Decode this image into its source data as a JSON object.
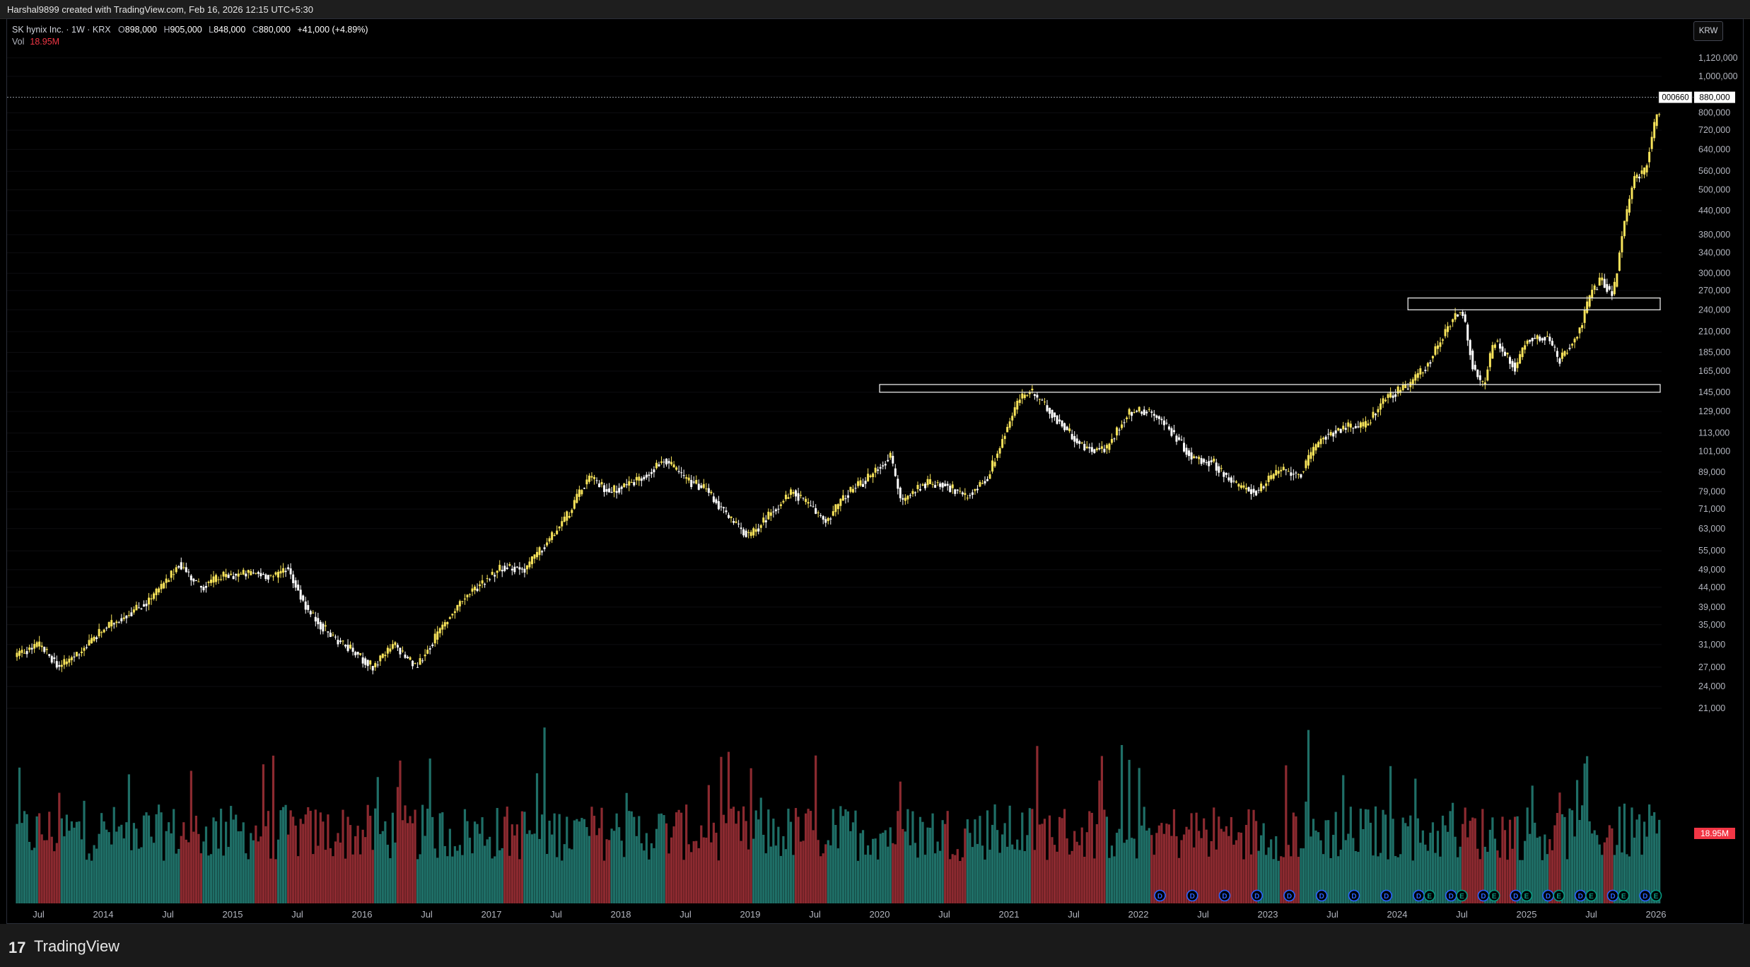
{
  "header": {
    "credit": "Harshal9899 created with TradingView.com, Feb 16, 2026 12:15 UTC+5:30"
  },
  "legend": {
    "symbol": "SK hynix Inc. · 1W · KRX",
    "open_label": "O",
    "open": "898,000",
    "high_label": "H",
    "high": "905,000",
    "low_label": "L",
    "low": "848,000",
    "close_label": "C",
    "close": "880,000",
    "change": "+41,000 (+4.89%)",
    "vol_label": "Vol",
    "vol_value": "18.95M"
  },
  "currency": "KRW",
  "price_tag": {
    "ticker": "000660",
    "price": "880,000"
  },
  "vol_tag": "18.95M",
  "footer": {
    "brand": "TradingView",
    "logo_glyph": "17"
  },
  "colors": {
    "background": "#000000",
    "candle_up": "#f7e35a",
    "candle_down": "#ffffff",
    "volume_up": "#1f6f67",
    "volume_down": "#8c2a30",
    "volume_tag": "#f23645",
    "event_dividend": "#2962ff",
    "event_earnings": "#089981"
  },
  "chart_data": {
    "type": "candlestick",
    "interval": "1W",
    "currency": "KRW",
    "y_scale": "log",
    "y_ticks": [
      21000,
      24000,
      27000,
      31000,
      35000,
      39000,
      44000,
      49000,
      55000,
      63000,
      71000,
      79000,
      89000,
      101000,
      113000,
      129000,
      145000,
      165000,
      185000,
      210000,
      240000,
      270000,
      300000,
      340000,
      380000,
      440000,
      500000,
      560000,
      640000,
      720000,
      800000,
      1000000,
      1120000
    ],
    "y_tick_labels": [
      "21,000",
      "24,000",
      "27,000",
      "31,000",
      "35,000",
      "39,000",
      "44,000",
      "49,000",
      "55,000",
      "63,000",
      "71,000",
      "79,000",
      "89,000",
      "101,000",
      "113,000",
      "129,000",
      "145,000",
      "165,000",
      "185,000",
      "210,000",
      "240,000",
      "270,000",
      "300,000",
      "340,000",
      "380,000",
      "440,000",
      "500,000",
      "560,000",
      "640,000",
      "720,000",
      "800,000",
      "1,000,000",
      "1,120,000"
    ],
    "x_labels": [
      "Jul",
      "2014",
      "Jul",
      "2015",
      "Jul",
      "2016",
      "Jul",
      "2017",
      "Jul",
      "2018",
      "Jul",
      "2019",
      "Jul",
      "2020",
      "Jul",
      "2021",
      "Jul",
      "2022",
      "Jul",
      "2023",
      "Jul",
      "2024",
      "Jul",
      "2025",
      "Jul",
      "2026"
    ],
    "x_label_dates": [
      "2013-07",
      "2014-01",
      "2014-07",
      "2015-01",
      "2015-07",
      "2016-01",
      "2016-07",
      "2017-01",
      "2017-07",
      "2018-01",
      "2018-07",
      "2019-01",
      "2019-07",
      "2020-01",
      "2020-07",
      "2021-01",
      "2021-07",
      "2022-01",
      "2022-07",
      "2023-01",
      "2023-07",
      "2024-01",
      "2024-07",
      "2025-01",
      "2025-07",
      "2026-01"
    ],
    "price_path": [
      [
        "2013-05",
        29000
      ],
      [
        "2013-07",
        31000
      ],
      [
        "2013-09",
        27000
      ],
      [
        "2013-11",
        30000
      ],
      [
        "2014-01",
        34000
      ],
      [
        "2014-03",
        37000
      ],
      [
        "2014-05",
        40000
      ],
      [
        "2014-07",
        46000
      ],
      [
        "2014-08",
        51000
      ],
      [
        "2014-10",
        44000
      ],
      [
        "2014-12",
        47000
      ],
      [
        "2015-03",
        48000
      ],
      [
        "2015-05",
        47000
      ],
      [
        "2015-06",
        50000
      ],
      [
        "2015-08",
        38000
      ],
      [
        "2015-10",
        33000
      ],
      [
        "2015-12",
        30000
      ],
      [
        "2016-02",
        27000
      ],
      [
        "2016-04",
        31000
      ],
      [
        "2016-06",
        27000
      ],
      [
        "2016-08",
        33000
      ],
      [
        "2016-10",
        40000
      ],
      [
        "2016-12",
        45000
      ],
      [
        "2017-02",
        50000
      ],
      [
        "2017-04",
        49000
      ],
      [
        "2017-06",
        57000
      ],
      [
        "2017-08",
        68000
      ],
      [
        "2017-10",
        86000
      ],
      [
        "2017-12",
        79000
      ],
      [
        "2018-03",
        86000
      ],
      [
        "2018-05",
        96000
      ],
      [
        "2018-07",
        85000
      ],
      [
        "2018-09",
        80000
      ],
      [
        "2018-11",
        67000
      ],
      [
        "2019-01",
        60000
      ],
      [
        "2019-03",
        70000
      ],
      [
        "2019-05",
        79000
      ],
      [
        "2019-08",
        66000
      ],
      [
        "2019-10",
        78000
      ],
      [
        "2019-12",
        86000
      ],
      [
        "2020-02",
        98000
      ],
      [
        "2020-03",
        74000
      ],
      [
        "2020-05",
        83000
      ],
      [
        "2020-07",
        83000
      ],
      [
        "2020-09",
        76000
      ],
      [
        "2020-11",
        86000
      ],
      [
        "2021-01",
        120000
      ],
      [
        "2021-02",
        140000
      ],
      [
        "2021-03",
        146000
      ],
      [
        "2021-05",
        127000
      ],
      [
        "2021-08",
        103000
      ],
      [
        "2021-10",
        102000
      ],
      [
        "2021-12",
        128000
      ],
      [
        "2022-02",
        130000
      ],
      [
        "2022-04",
        115000
      ],
      [
        "2022-06",
        97000
      ],
      [
        "2022-08",
        94000
      ],
      [
        "2022-10",
        82000
      ],
      [
        "2022-12",
        79000
      ],
      [
        "2023-02",
        90000
      ],
      [
        "2023-04",
        88000
      ],
      [
        "2023-06",
        110000
      ],
      [
        "2023-08",
        117000
      ],
      [
        "2023-10",
        118000
      ],
      [
        "2023-12",
        141000
      ],
      [
        "2024-02",
        150000
      ],
      [
        "2024-04",
        175000
      ],
      [
        "2024-06",
        225000
      ],
      [
        "2024-07",
        242000
      ],
      [
        "2024-08",
        171000
      ],
      [
        "2024-09",
        150000
      ],
      [
        "2024-10",
        200000
      ],
      [
        "2024-12",
        168000
      ],
      [
        "2025-01",
        200000
      ],
      [
        "2025-03",
        205000
      ],
      [
        "2025-04",
        175000
      ],
      [
        "2025-06",
        215000
      ],
      [
        "2025-07",
        268000
      ],
      [
        "2025-08",
        290000
      ],
      [
        "2025-09",
        260000
      ],
      [
        "2025-10",
        400000
      ],
      [
        "2025-11",
        540000
      ],
      [
        "2025-12",
        560000
      ],
      [
        "2026-01",
        780000
      ],
      [
        "2026-02",
        880000
      ]
    ],
    "zones": [
      {
        "from": "2020-01",
        "to": "2026-01",
        "low": 145000,
        "high": 152000
      },
      {
        "from": "2024-02",
        "to": "2026-01",
        "low": 240000,
        "high": 258000
      }
    ],
    "events": [
      {
        "date": "2022-03",
        "type": "D"
      },
      {
        "date": "2022-06",
        "type": "D"
      },
      {
        "date": "2022-09",
        "type": "D"
      },
      {
        "date": "2022-12",
        "type": "D"
      },
      {
        "date": "2023-03",
        "type": "D"
      },
      {
        "date": "2023-06",
        "type": "D"
      },
      {
        "date": "2023-09",
        "type": "D"
      },
      {
        "date": "2023-12",
        "type": "D"
      },
      {
        "date": "2024-03",
        "type": "D"
      },
      {
        "date": "2024-04",
        "type": "E"
      },
      {
        "date": "2024-06",
        "type": "D"
      },
      {
        "date": "2024-07",
        "type": "E"
      },
      {
        "date": "2024-09",
        "type": "D"
      },
      {
        "date": "2024-10",
        "type": "E"
      },
      {
        "date": "2024-12",
        "type": "D"
      },
      {
        "date": "2025-01",
        "type": "E"
      },
      {
        "date": "2025-03",
        "type": "D"
      },
      {
        "date": "2025-04",
        "type": "E"
      },
      {
        "date": "2025-06",
        "type": "D"
      },
      {
        "date": "2025-07",
        "type": "E"
      },
      {
        "date": "2025-09",
        "type": "D"
      },
      {
        "date": "2025-10",
        "type": "E"
      },
      {
        "date": "2025-12",
        "type": "D"
      },
      {
        "date": "2026-01",
        "type": "E"
      }
    ],
    "last_price": 880000,
    "last_volume": "18.95M"
  }
}
